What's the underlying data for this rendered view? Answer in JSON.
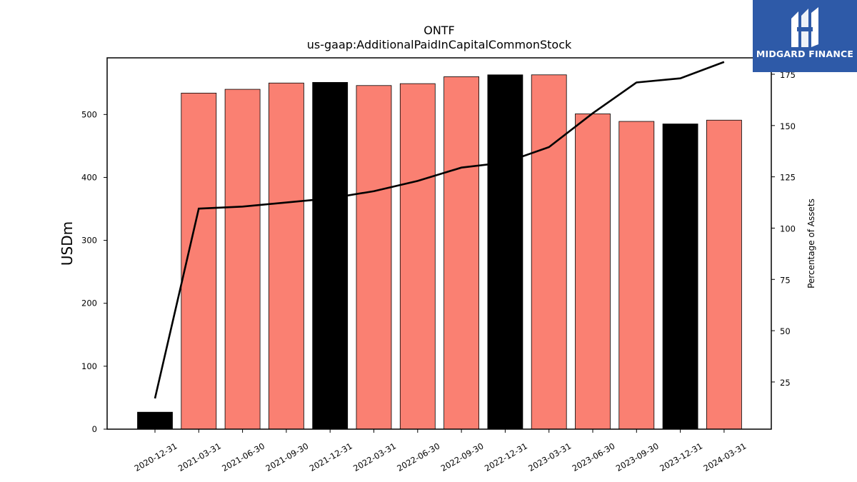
{
  "chart_data": {
    "type": "bar",
    "title": "ONTF",
    "subtitle": "us-gaap:AdditionalPaidInCapitalCommonStock",
    "ylabel": "USDm",
    "y2label": "Percentage of Assets",
    "categories": [
      "2020-12-31",
      "2021-03-31",
      "2021-06-30",
      "2021-09-30",
      "2021-12-31",
      "2022-03-31",
      "2022-06-30",
      "2022-09-30",
      "2022-12-31",
      "2023-03-31",
      "2023-06-30",
      "2023-09-30",
      "2023-12-31",
      "2024-03-31"
    ],
    "values": [
      27,
      534,
      540,
      550,
      551,
      546,
      549,
      560,
      563,
      563,
      501,
      489,
      485,
      491
    ],
    "bar_colors": [
      "#000000",
      "#fa8072",
      "#fa8072",
      "#fa8072",
      "#000000",
      "#fa8072",
      "#fa8072",
      "#fa8072",
      "#000000",
      "#fa8072",
      "#fa8072",
      "#fa8072",
      "#000000",
      "#fa8072"
    ],
    "ylim": [
      0,
      590
    ],
    "yticks": [
      0,
      100,
      200,
      300,
      400,
      500
    ],
    "line_series": {
      "values": [
        17,
        109.5,
        110.5,
        112.5,
        114.5,
        118,
        123,
        129.5,
        132,
        139.5,
        156,
        171,
        173,
        181
      ],
      "color": "#000000"
    },
    "y2lim": [
      2,
      183
    ],
    "y2ticks": [
      25,
      50,
      75,
      100,
      125,
      150,
      175
    ],
    "grid": false,
    "legend": "none"
  },
  "logo": {
    "text": "MIDGARD FINANCE",
    "bg_color": "#2e5aa8"
  }
}
